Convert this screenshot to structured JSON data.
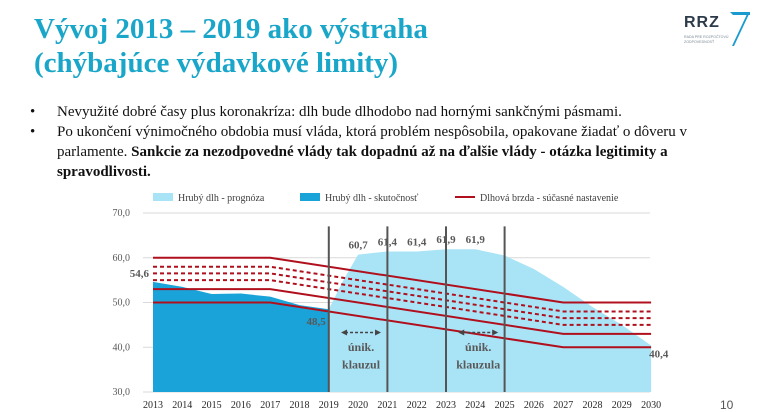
{
  "slide": {
    "title_line1": "Vývoj 2013 – 2019 ako výstraha",
    "title_line2": "(chýbajúce výdavkové limity)",
    "logo_text": "RRZ",
    "logo_subtitle": "RADA PRE ROZPOČTOVÚ ZODPOVEDNOSŤ",
    "page_number": "10"
  },
  "bullets": [
    {
      "marker": "•",
      "text": "Nevyužité dobré časy plus koronakríza: dlh bude dlhodobo nad hornými sankčnými pásmami."
    },
    {
      "marker": "•",
      "text": "Po ukončení výnimočného obdobia musí vláda, ktorá problém nespôsobila, opakovane žiadať o dôveru v parlamente.",
      "bold": "Sankcie za nezodpovedné vlády tak dopadnú až na ďalšie vlády - otázka legitimity a spravodlivosti",
      "end": "."
    }
  ],
  "colors": {
    "title": "#19a6c8",
    "forecast": "#a9e4f6",
    "actual": "#1aa3d8",
    "brake": "#b0101d",
    "grid": "#d9d9d9",
    "clause_line": "#555555"
  },
  "chart_data": {
    "type": "area",
    "x": [
      2013,
      2014,
      2015,
      2016,
      2017,
      2018,
      2019,
      2020,
      2021,
      2022,
      2023,
      2024,
      2025,
      2026,
      2027,
      2028,
      2029,
      2030
    ],
    "ylim": [
      30,
      70
    ],
    "yticks": [
      "30,0",
      "40,0",
      "50,0",
      "60,0",
      "70,0"
    ],
    "legend_position": "top",
    "series": [
      {
        "name": "Hrubý dlh - prognóza",
        "kind": "area",
        "x": [
          2019,
          2019.5,
          2020,
          2021,
          2022,
          2023,
          2024,
          2025,
          2026,
          2027,
          2028,
          2029,
          2030
        ],
        "values": [
          48.5,
          55,
          60.7,
          61.4,
          61.4,
          61.9,
          61.9,
          60.5,
          57.5,
          53.5,
          49,
          45,
          40.4
        ]
      },
      {
        "name": "Hrubý dlh - skutočnosť",
        "kind": "area",
        "x": [
          2013,
          2014,
          2015,
          2016,
          2017,
          2018,
          2019
        ],
        "values": [
          54.6,
          53.5,
          51.9,
          52.0,
          51.3,
          49.4,
          48.5
        ]
      },
      {
        "name": "Dlhová brzda - súčasné nastavenie",
        "kind": "line"
      }
    ],
    "debt_brake": [
      {
        "style": "solid",
        "x": [
          2013,
          2017,
          2027,
          2030
        ],
        "values": [
          60,
          60,
          50,
          50
        ]
      },
      {
        "style": "dashed",
        "x": [
          2013,
          2017,
          2027,
          2030
        ],
        "values": [
          58,
          58,
          48,
          48
        ]
      },
      {
        "style": "dashed",
        "x": [
          2013,
          2017,
          2027,
          2030
        ],
        "values": [
          56.5,
          56.5,
          46.5,
          46.5
        ]
      },
      {
        "style": "dashed",
        "x": [
          2013,
          2017,
          2027,
          2030
        ],
        "values": [
          55,
          55,
          45,
          45
        ]
      },
      {
        "style": "solid",
        "x": [
          2013,
          2017,
          2027,
          2030
        ],
        "values": [
          53,
          53,
          43,
          43
        ]
      },
      {
        "style": "solid",
        "x": [
          2013,
          2017,
          2027,
          2030
        ],
        "values": [
          50,
          50,
          40,
          40
        ]
      }
    ],
    "clause_lines": [
      2019,
      2021,
      2023,
      2025
    ],
    "clause_labels": [
      {
        "line1": "únik.",
        "line2": "klauzul",
        "x": 2020.1
      },
      {
        "line1": "únik.",
        "line2": "klauzula",
        "x": 2024.1
      }
    ],
    "data_labels": [
      {
        "text": "54,6",
        "x": 2013,
        "y": 54.6,
        "pos": "left-above"
      },
      {
        "text": "48,5",
        "x": 2019,
        "y": 48.5,
        "pos": "below-left"
      },
      {
        "text": "60,7",
        "x": 2020,
        "y": 60.7,
        "pos": "above"
      },
      {
        "text": "61,4",
        "x": 2021,
        "y": 61.4,
        "pos": "above"
      },
      {
        "text": "61,4",
        "x": 2022,
        "y": 61.4,
        "pos": "above"
      },
      {
        "text": "61,9",
        "x": 2023,
        "y": 61.9,
        "pos": "above"
      },
      {
        "text": "61,9",
        "x": 2024,
        "y": 61.9,
        "pos": "above"
      },
      {
        "text": "40,4",
        "x": 2030,
        "y": 40.4,
        "pos": "right"
      }
    ]
  }
}
